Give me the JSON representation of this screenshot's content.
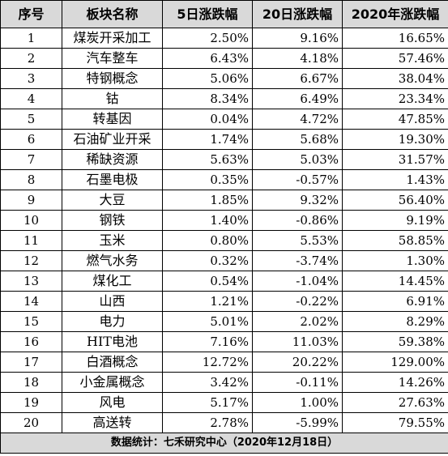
{
  "table": {
    "headers": [
      "序号",
      "板块名称",
      "5日涨跌幅",
      "20日涨跌幅",
      "2020年涨跌幅"
    ],
    "rows": [
      [
        "1",
        "煤炭开采加工",
        "2.50%",
        "9.16%",
        "16.65%"
      ],
      [
        "2",
        "汽车整车",
        "6.43%",
        "4.18%",
        "57.46%"
      ],
      [
        "3",
        "特钢概念",
        "5.06%",
        "6.67%",
        "38.04%"
      ],
      [
        "4",
        "钴",
        "8.34%",
        "6.49%",
        "23.34%"
      ],
      [
        "5",
        "转基因",
        "0.04%",
        "4.72%",
        "47.85%"
      ],
      [
        "6",
        "石油矿业开采",
        "1.74%",
        "5.68%",
        "19.30%"
      ],
      [
        "7",
        "稀缺资源",
        "5.63%",
        "5.03%",
        "31.57%"
      ],
      [
        "8",
        "石墨电极",
        "0.35%",
        "-0.57%",
        "1.43%"
      ],
      [
        "9",
        "大豆",
        "1.85%",
        "9.32%",
        "56.40%"
      ],
      [
        "10",
        "钢铁",
        "1.40%",
        "-0.86%",
        "9.19%"
      ],
      [
        "11",
        "玉米",
        "0.80%",
        "5.53%",
        "58.85%"
      ],
      [
        "12",
        "燃气水务",
        "0.32%",
        "-3.74%",
        "1.30%"
      ],
      [
        "13",
        "煤化工",
        "0.54%",
        "-1.04%",
        "14.45%"
      ],
      [
        "14",
        "山西",
        "1.21%",
        "-0.22%",
        "6.91%"
      ],
      [
        "15",
        "电力",
        "5.01%",
        "2.02%",
        "8.29%"
      ],
      [
        "16",
        "HIT电池",
        "7.16%",
        "11.03%",
        "59.38%"
      ],
      [
        "17",
        "白酒概念",
        "12.72%",
        "20.22%",
        "129.00%"
      ],
      [
        "18",
        "小金属概念",
        "3.42%",
        "-0.11%",
        "14.26%"
      ],
      [
        "19",
        "风电",
        "5.17%",
        "1.00%",
        "27.63%"
      ],
      [
        "20",
        "高送转",
        "2.78%",
        "-5.99%",
        "79.55%"
      ]
    ],
    "footer": "数据统计：七禾研究中心（2020年12月18日）"
  }
}
